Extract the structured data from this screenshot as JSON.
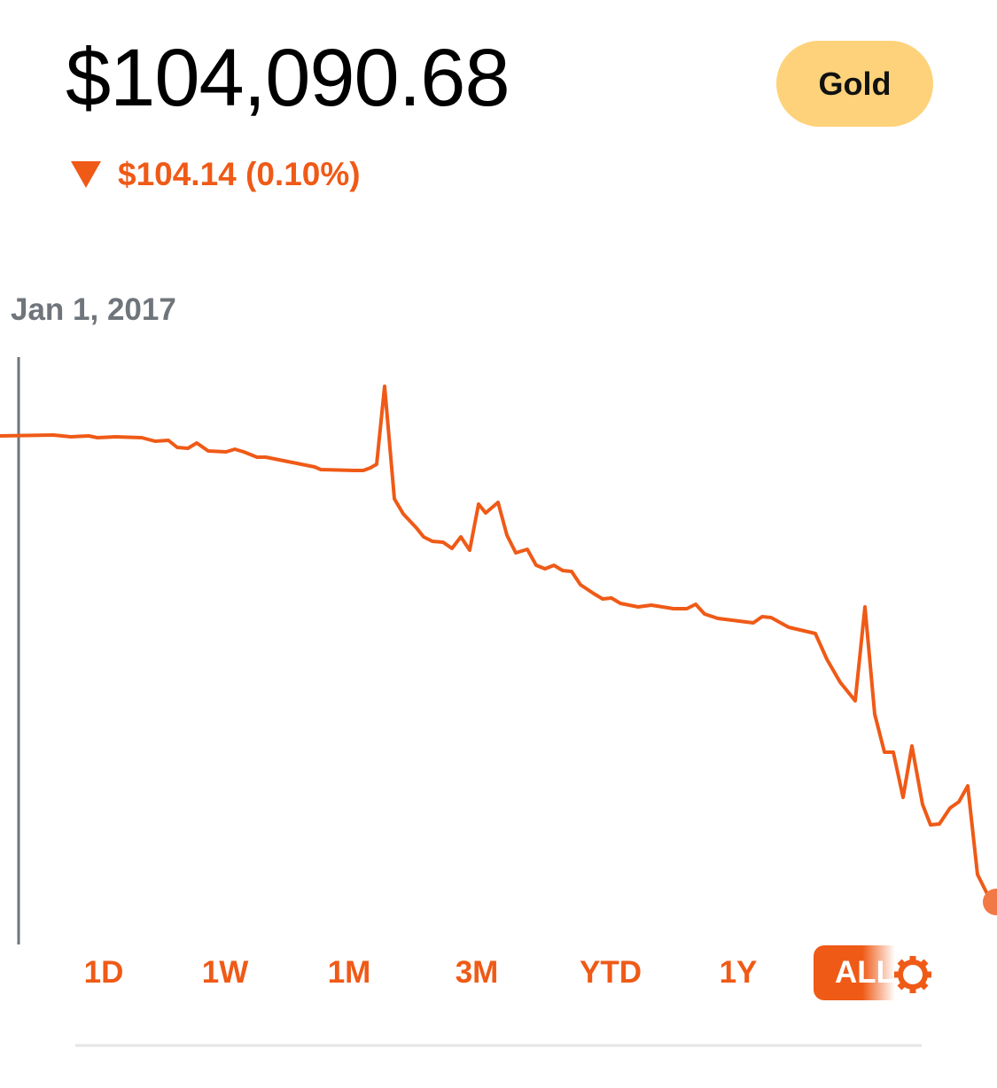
{
  "header": {
    "price": "$104,090.68",
    "badge": "Gold",
    "change": "$104.14 (0.10%)"
  },
  "chart": {
    "date_label": "Jan 1, 2017"
  },
  "ranges": [
    "1D",
    "1W",
    "1M",
    "3M",
    "YTD",
    "1Y",
    "ALL"
  ]
}
